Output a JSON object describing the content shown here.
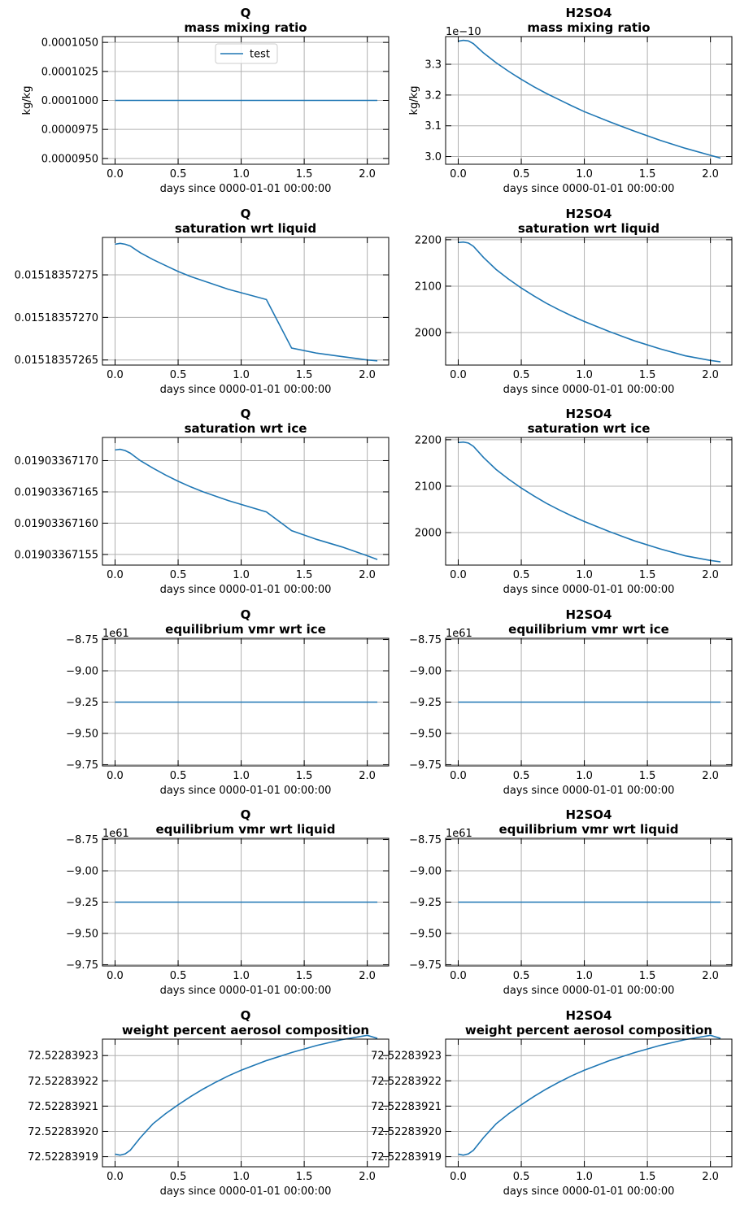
{
  "figure": {
    "line_color": "#1f77b4",
    "grid_color": "#b0b0b0"
  },
  "chart_data": [
    {
      "type": "line",
      "title": [
        "Q",
        "mass mixing ratio"
      ],
      "xlabel": "days since 0000-01-01 00:00:00",
      "ylabel": "kg/kg",
      "offset_text": "",
      "xlim": [
        -0.1,
        2.17
      ],
      "ylim": [
        9.45e-05,
        0.0001055
      ],
      "xticks": [
        0.0,
        0.5,
        1.0,
        1.5,
        2.0
      ],
      "xtick_labels": [
        "0.0",
        "0.5",
        "1.0",
        "1.5",
        "2.0"
      ],
      "yticks": [
        9.5e-05,
        9.75e-05,
        0.0001,
        0.0001025,
        0.000105
      ],
      "ytick_labels": [
        "0.0000950",
        "0.0000975",
        "0.0001000",
        "0.0001025",
        "0.0001050"
      ],
      "grid": true,
      "legend": {
        "position": "upper center",
        "entries": [
          "test"
        ]
      },
      "series": [
        {
          "name": "test",
          "x": [
            0.0,
            2.08
          ],
          "y": [
            0.0001,
            0.0001
          ]
        }
      ]
    },
    {
      "type": "line",
      "title": [
        "H2SO4",
        "mass mixing ratio"
      ],
      "xlabel": "days since 0000-01-01 00:00:00",
      "ylabel": "kg/kg",
      "offset_text": "1e−10",
      "xlim": [
        -0.1,
        2.17
      ],
      "ylim": [
        2.975,
        3.39
      ],
      "xticks": [
        0.0,
        0.5,
        1.0,
        1.5,
        2.0
      ],
      "xtick_labels": [
        "0.0",
        "0.5",
        "1.0",
        "1.5",
        "2.0"
      ],
      "yticks": [
        3.0,
        3.1,
        3.2,
        3.3
      ],
      "ytick_labels": [
        "3.0",
        "3.1",
        "3.2",
        "3.3"
      ],
      "grid": true,
      "series": [
        {
          "x": [
            0.0,
            0.04,
            0.08,
            0.12,
            0.16,
            0.2,
            0.3,
            0.4,
            0.5,
            0.6,
            0.7,
            0.8,
            0.9,
            1.0,
            1.2,
            1.4,
            1.6,
            1.8,
            2.0,
            2.08
          ],
          "y": [
            3.375,
            3.378,
            3.376,
            3.367,
            3.352,
            3.337,
            3.305,
            3.277,
            3.251,
            3.227,
            3.205,
            3.185,
            3.165,
            3.146,
            3.113,
            3.082,
            3.053,
            3.027,
            3.004,
            2.995
          ]
        }
      ]
    },
    {
      "type": "line",
      "title": [
        "Q",
        "saturation wrt liquid"
      ],
      "xlabel": "days since 0000-01-01 00:00:00",
      "ylabel": "",
      "offset_text": "",
      "xlim": [
        -0.1,
        2.17
      ],
      "ylim": [
        0.015183572644,
        0.015183572794
      ],
      "xticks": [
        0.0,
        0.5,
        1.0,
        1.5,
        2.0
      ],
      "xtick_labels": [
        "0.0",
        "0.5",
        "1.0",
        "1.5",
        "2.0"
      ],
      "yticks": [
        0.01518357265,
        0.0151835727,
        0.01518357275
      ],
      "ytick_labels": [
        "0.01518357265",
        "0.01518357270",
        "0.01518357275"
      ],
      "grid": true,
      "series": [
        {
          "x": [
            0.0,
            0.04,
            0.08,
            0.12,
            0.16,
            0.2,
            0.3,
            0.4,
            0.5,
            0.6,
            0.7,
            0.8,
            0.9,
            1.0,
            1.2,
            1.4,
            1.6,
            1.8,
            2.0,
            2.08
          ],
          "y": [
            0.015183572786,
            0.015183572787,
            0.015183572786,
            0.015183572784,
            0.01518357278,
            0.015183572776,
            0.015183572768,
            0.015183572761,
            0.015183572754,
            0.015183572748,
            0.015183572743,
            0.015183572738,
            0.015183572733,
            0.015183572729,
            0.015183572721,
            0.015183572664,
            0.015183572658,
            0.015183572654,
            0.01518357265,
            0.015183572649
          ]
        }
      ]
    },
    {
      "type": "line",
      "title": [
        "H2SO4",
        "saturation wrt liquid"
      ],
      "xlabel": "days since 0000-01-01 00:00:00",
      "ylabel": "",
      "offset_text": "",
      "xlim": [
        -0.1,
        2.17
      ],
      "ylim": [
        1930,
        2205
      ],
      "xticks": [
        0.0,
        0.5,
        1.0,
        1.5,
        2.0
      ],
      "xtick_labels": [
        "0.0",
        "0.5",
        "1.0",
        "1.5",
        "2.0"
      ],
      "yticks": [
        2000,
        2100,
        2200
      ],
      "ytick_labels": [
        "2000",
        "2100",
        "2200"
      ],
      "grid": true,
      "series": [
        {
          "x": [
            0.0,
            0.04,
            0.08,
            0.12,
            0.16,
            0.2,
            0.3,
            0.4,
            0.5,
            0.6,
            0.7,
            0.8,
            0.9,
            1.0,
            1.2,
            1.4,
            1.6,
            1.8,
            2.0,
            2.08
          ],
          "y": [
            2194,
            2195,
            2193,
            2186,
            2174,
            2162,
            2136,
            2115,
            2096,
            2079,
            2063,
            2049,
            2036,
            2024,
            2002,
            1982,
            1965,
            1950,
            1940,
            1937
          ]
        }
      ]
    },
    {
      "type": "line",
      "title": [
        "Q",
        "saturation wrt ice"
      ],
      "xlabel": "days since 0000-01-01 00:00:00",
      "ylabel": "",
      "offset_text": "",
      "xlim": [
        -0.1,
        2.17
      ],
      "ylim": [
        0.019033671533,
        0.019033671737
      ],
      "xticks": [
        0.0,
        0.5,
        1.0,
        1.5,
        2.0
      ],
      "xtick_labels": [
        "0.0",
        "0.5",
        "1.0",
        "1.5",
        "2.0"
      ],
      "yticks": [
        0.01903367155,
        0.0190336716,
        0.01903367165,
        0.0190336717
      ],
      "ytick_labels": [
        "0.01903367155",
        "0.01903367160",
        "0.01903367165",
        "0.01903367170"
      ],
      "grid": true,
      "series": [
        {
          "x": [
            0.0,
            0.04,
            0.08,
            0.12,
            0.16,
            0.2,
            0.3,
            0.4,
            0.5,
            0.6,
            0.7,
            0.8,
            0.9,
            1.0,
            1.2,
            1.4,
            1.6,
            1.8,
            2.0,
            2.08
          ],
          "y": [
            0.019033671717,
            0.019033671718,
            0.019033671716,
            0.019033671712,
            0.019033671706,
            0.0190336717,
            0.019033671688,
            0.019033671677,
            0.019033671667,
            0.019033671658,
            0.01903367165,
            0.019033671643,
            0.019033671636,
            0.01903367163,
            0.019033671618,
            0.019033671588,
            0.019033671574,
            0.019033671562,
            0.019033671548,
            0.019033671542
          ]
        }
      ]
    },
    {
      "type": "line",
      "title": [
        "H2SO4",
        "saturation wrt ice"
      ],
      "xlabel": "days since 0000-01-01 00:00:00",
      "ylabel": "",
      "offset_text": "",
      "xlim": [
        -0.1,
        2.17
      ],
      "ylim": [
        1930,
        2205
      ],
      "xticks": [
        0.0,
        0.5,
        1.0,
        1.5,
        2.0
      ],
      "xtick_labels": [
        "0.0",
        "0.5",
        "1.0",
        "1.5",
        "2.0"
      ],
      "yticks": [
        2000,
        2100,
        2200
      ],
      "ytick_labels": [
        "2000",
        "2100",
        "2200"
      ],
      "grid": true,
      "series": [
        {
          "x": [
            0.0,
            0.04,
            0.08,
            0.12,
            0.16,
            0.2,
            0.3,
            0.4,
            0.5,
            0.6,
            0.7,
            0.8,
            0.9,
            1.0,
            1.2,
            1.4,
            1.6,
            1.8,
            2.0,
            2.08
          ],
          "y": [
            2194,
            2195,
            2193,
            2186,
            2174,
            2162,
            2136,
            2115,
            2096,
            2079,
            2063,
            2049,
            2036,
            2024,
            2002,
            1982,
            1965,
            1950,
            1940,
            1937
          ]
        }
      ]
    },
    {
      "type": "line",
      "title": [
        "Q",
        "equilibrium vmr wrt ice"
      ],
      "xlabel": "days since 0000-01-01 00:00:00",
      "ylabel": "",
      "offset_text": "1e61",
      "xlim": [
        -0.1,
        2.17
      ],
      "ylim": [
        -9.76,
        -8.74
      ],
      "xticks": [
        0.0,
        0.5,
        1.0,
        1.5,
        2.0
      ],
      "xtick_labels": [
        "0.0",
        "0.5",
        "1.0",
        "1.5",
        "2.0"
      ],
      "yticks": [
        -9.75,
        -9.5,
        -9.25,
        -9.0,
        -8.75
      ],
      "ytick_labels": [
        "−9.75",
        "−9.50",
        "−9.25",
        "−9.00",
        "−8.75"
      ],
      "grid": true,
      "series": [
        {
          "x": [
            0.0,
            2.08
          ],
          "y": [
            -9.25,
            -9.25
          ]
        }
      ]
    },
    {
      "type": "line",
      "title": [
        "H2SO4",
        "equilibrium vmr wrt ice"
      ],
      "xlabel": "days since 0000-01-01 00:00:00",
      "ylabel": "",
      "offset_text": "1e61",
      "xlim": [
        -0.1,
        2.17
      ],
      "ylim": [
        -9.76,
        -8.74
      ],
      "xticks": [
        0.0,
        0.5,
        1.0,
        1.5,
        2.0
      ],
      "xtick_labels": [
        "0.0",
        "0.5",
        "1.0",
        "1.5",
        "2.0"
      ],
      "yticks": [
        -9.75,
        -9.5,
        -9.25,
        -9.0,
        -8.75
      ],
      "ytick_labels": [
        "−9.75",
        "−9.50",
        "−9.25",
        "−9.00",
        "−8.75"
      ],
      "grid": true,
      "series": [
        {
          "x": [
            0.0,
            2.08
          ],
          "y": [
            -9.25,
            -9.25
          ]
        }
      ]
    },
    {
      "type": "line",
      "title": [
        "Q",
        "equilibrium vmr wrt liquid"
      ],
      "xlabel": "days since 0000-01-01 00:00:00",
      "ylabel": "",
      "offset_text": "1e61",
      "xlim": [
        -0.1,
        2.17
      ],
      "ylim": [
        -9.76,
        -8.74
      ],
      "xticks": [
        0.0,
        0.5,
        1.0,
        1.5,
        2.0
      ],
      "xtick_labels": [
        "0.0",
        "0.5",
        "1.0",
        "1.5",
        "2.0"
      ],
      "yticks": [
        -9.75,
        -9.5,
        -9.25,
        -9.0,
        -8.75
      ],
      "ytick_labels": [
        "−9.75",
        "−9.50",
        "−9.25",
        "−9.00",
        "−8.75"
      ],
      "grid": true,
      "series": [
        {
          "x": [
            0.0,
            2.08
          ],
          "y": [
            -9.25,
            -9.25
          ]
        }
      ]
    },
    {
      "type": "line",
      "title": [
        "H2SO4",
        "equilibrium vmr wrt liquid"
      ],
      "xlabel": "days since 0000-01-01 00:00:00",
      "ylabel": "",
      "offset_text": "1e61",
      "xlim": [
        -0.1,
        2.17
      ],
      "ylim": [
        -9.76,
        -8.74
      ],
      "xticks": [
        0.0,
        0.5,
        1.0,
        1.5,
        2.0
      ],
      "xtick_labels": [
        "0.0",
        "0.5",
        "1.0",
        "1.5",
        "2.0"
      ],
      "yticks": [
        -9.75,
        -9.5,
        -9.25,
        -9.0,
        -8.75
      ],
      "ytick_labels": [
        "−9.75",
        "−9.50",
        "−9.25",
        "−9.00",
        "−8.75"
      ],
      "grid": true,
      "series": [
        {
          "x": [
            0.0,
            2.08
          ],
          "y": [
            -9.25,
            -9.25
          ]
        }
      ]
    },
    {
      "type": "line",
      "title": [
        "Q",
        "weight percent aerosol composition"
      ],
      "xlabel": "days since 0000-01-01 00:00:00",
      "ylabel": "",
      "offset_text": "",
      "xlim": [
        -0.1,
        2.17
      ],
      "ylim": [
        72.522839186,
        72.5228392365
      ],
      "xticks": [
        0.0,
        0.5,
        1.0,
        1.5,
        2.0
      ],
      "xtick_labels": [
        "0.0",
        "0.5",
        "1.0",
        "1.5",
        "2.0"
      ],
      "yticks": [
        72.52283919,
        72.5228392,
        72.52283921,
        72.52283922,
        72.52283923
      ],
      "ytick_labels": [
        "72.52283919",
        "72.52283920",
        "72.52283921",
        "72.52283922",
        "72.52283923"
      ],
      "grid": true,
      "series": [
        {
          "x": [
            0.0,
            0.04,
            0.08,
            0.12,
            0.16,
            0.2,
            0.3,
            0.4,
            0.5,
            0.6,
            0.7,
            0.8,
            0.9,
            1.0,
            1.2,
            1.4,
            1.6,
            1.8,
            2.0,
            2.08
          ],
          "y": [
            72.522839191,
            72.5228391906,
            72.5228391911,
            72.5228391925,
            72.522839195,
            72.5228391975,
            72.522839203,
            72.522839207,
            72.5228392105,
            72.5228392138,
            72.5228392168,
            72.5228392195,
            72.522839222,
            72.5228392242,
            72.522839228,
            72.5228392312,
            72.522839234,
            72.5228392363,
            72.522839238,
            72.5228392368
          ]
        }
      ]
    },
    {
      "type": "line",
      "title": [
        "H2SO4",
        "weight percent aerosol composition"
      ],
      "xlabel": "days since 0000-01-01 00:00:00",
      "ylabel": "",
      "offset_text": "",
      "xlim": [
        -0.1,
        2.17
      ],
      "ylim": [
        72.522839186,
        72.5228392365
      ],
      "xticks": [
        0.0,
        0.5,
        1.0,
        1.5,
        2.0
      ],
      "xtick_labels": [
        "0.0",
        "0.5",
        "1.0",
        "1.5",
        "2.0"
      ],
      "yticks": [
        72.52283919,
        72.5228392,
        72.52283921,
        72.52283922,
        72.52283923
      ],
      "ytick_labels": [
        "72.52283919",
        "72.52283920",
        "72.52283921",
        "72.52283922",
        "72.52283923"
      ],
      "grid": true,
      "series": [
        {
          "x": [
            0.0,
            0.04,
            0.08,
            0.12,
            0.16,
            0.2,
            0.3,
            0.4,
            0.5,
            0.6,
            0.7,
            0.8,
            0.9,
            1.0,
            1.2,
            1.4,
            1.6,
            1.8,
            2.0,
            2.08
          ],
          "y": [
            72.522839191,
            72.5228391906,
            72.5228391911,
            72.5228391925,
            72.522839195,
            72.5228391975,
            72.522839203,
            72.522839207,
            72.5228392105,
            72.5228392138,
            72.5228392168,
            72.5228392195,
            72.522839222,
            72.5228392242,
            72.522839228,
            72.5228392312,
            72.522839234,
            72.5228392363,
            72.522839238,
            72.5228392368
          ]
        }
      ]
    }
  ]
}
